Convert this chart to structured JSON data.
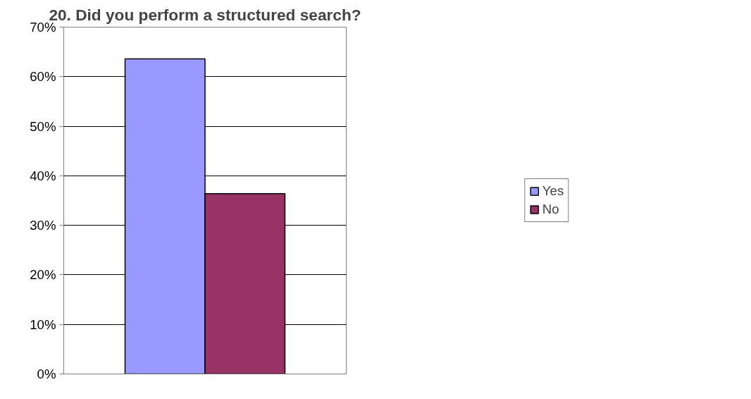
{
  "chart_data": {
    "type": "bar",
    "title": "20. Did you perform a structured search?",
    "categories": [
      null
    ],
    "series": [
      {
        "name": "Yes",
        "color": "#9999ff",
        "values": [
          63.6
        ]
      },
      {
        "name": "No",
        "color": "#993366",
        "values": [
          36.4
        ]
      }
    ],
    "ylim": [
      0,
      70
    ],
    "yticks": [
      {
        "value": 0,
        "label": "0%"
      },
      {
        "value": 10,
        "label": "10%"
      },
      {
        "value": 20,
        "label": "20%"
      },
      {
        "value": 30,
        "label": "30%"
      },
      {
        "value": 40,
        "label": "40%"
      },
      {
        "value": 50,
        "label": "50%"
      },
      {
        "value": 60,
        "label": "60%"
      },
      {
        "value": 70,
        "label": "70%"
      }
    ],
    "grid": "y",
    "legend": "right",
    "tick_labels": "y"
  }
}
